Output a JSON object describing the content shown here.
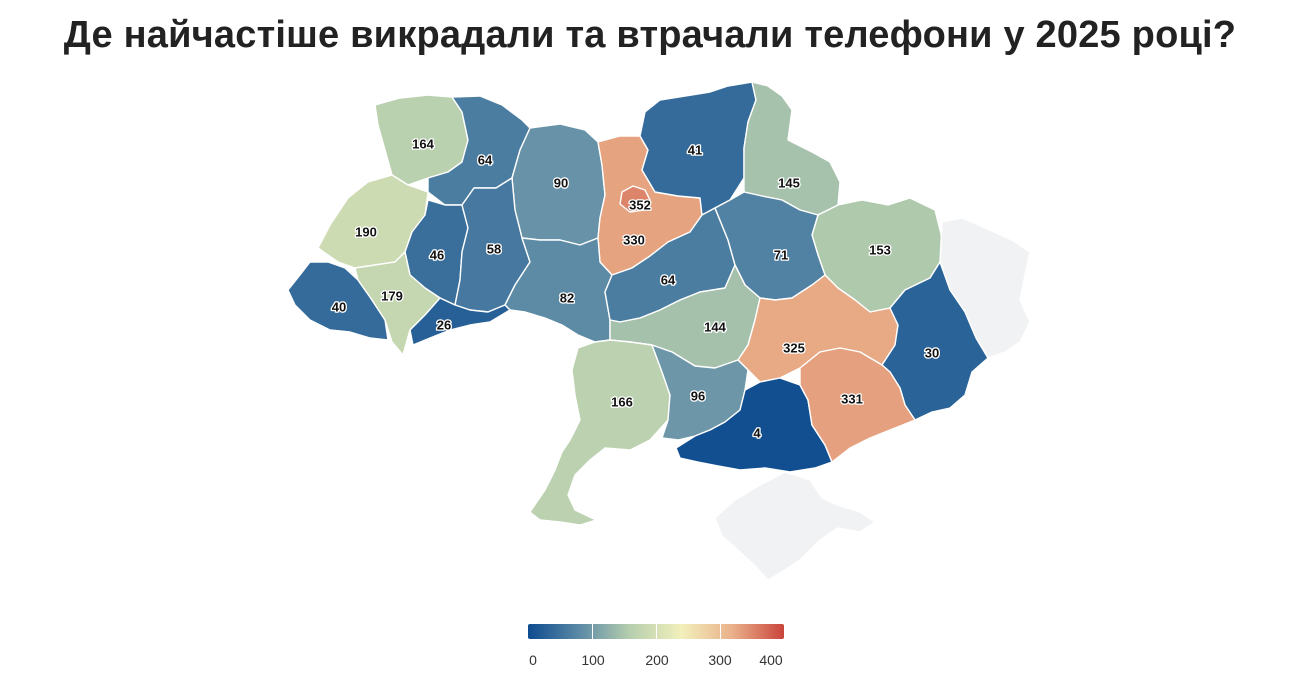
{
  "title": "Де найчастіше викрадали та втрачали телефони у 2025 році?",
  "legend": {
    "ticks": [
      "0",
      "100",
      "200",
      "300",
      "400"
    ],
    "min": 0,
    "max": 400,
    "colors": [
      "#0d4c8f",
      "#5b89a6",
      "#b7cfae",
      "#f2f0bc",
      "#eab08a",
      "#c9443b"
    ]
  },
  "no_data_color": "#f1f2f4",
  "regions": [
    {
      "id": "volyn",
      "value": 164
    },
    {
      "id": "rivne",
      "value": 64
    },
    {
      "id": "zhytomyr",
      "value": 90
    },
    {
      "id": "kyiv-oblast",
      "value": 330
    },
    {
      "id": "kyiv-city",
      "value": 352
    },
    {
      "id": "chernihiv",
      "value": 41
    },
    {
      "id": "sumy",
      "value": 145
    },
    {
      "id": "kharkiv",
      "value": 153
    },
    {
      "id": "luhansk",
      "value": null
    },
    {
      "id": "lviv",
      "value": 190
    },
    {
      "id": "ternopil",
      "value": 46
    },
    {
      "id": "khmelnytskyi",
      "value": 58
    },
    {
      "id": "vinnytsia",
      "value": 82
    },
    {
      "id": "cherkasy",
      "value": 64
    },
    {
      "id": "poltava",
      "value": 71
    },
    {
      "id": "zakarpattia",
      "value": 40
    },
    {
      "id": "ivano-frankivsk",
      "value": 179
    },
    {
      "id": "chernivtsi",
      "value": 26
    },
    {
      "id": "kirovohrad",
      "value": 144
    },
    {
      "id": "dnipropetrovsk",
      "value": 325
    },
    {
      "id": "donetsk",
      "value": 30
    },
    {
      "id": "odesa",
      "value": 166
    },
    {
      "id": "mykolaiv",
      "value": 96
    },
    {
      "id": "kherson",
      "value": 4
    },
    {
      "id": "zaporizhzhia",
      "value": 331
    },
    {
      "id": "crimea",
      "value": null
    }
  ]
}
